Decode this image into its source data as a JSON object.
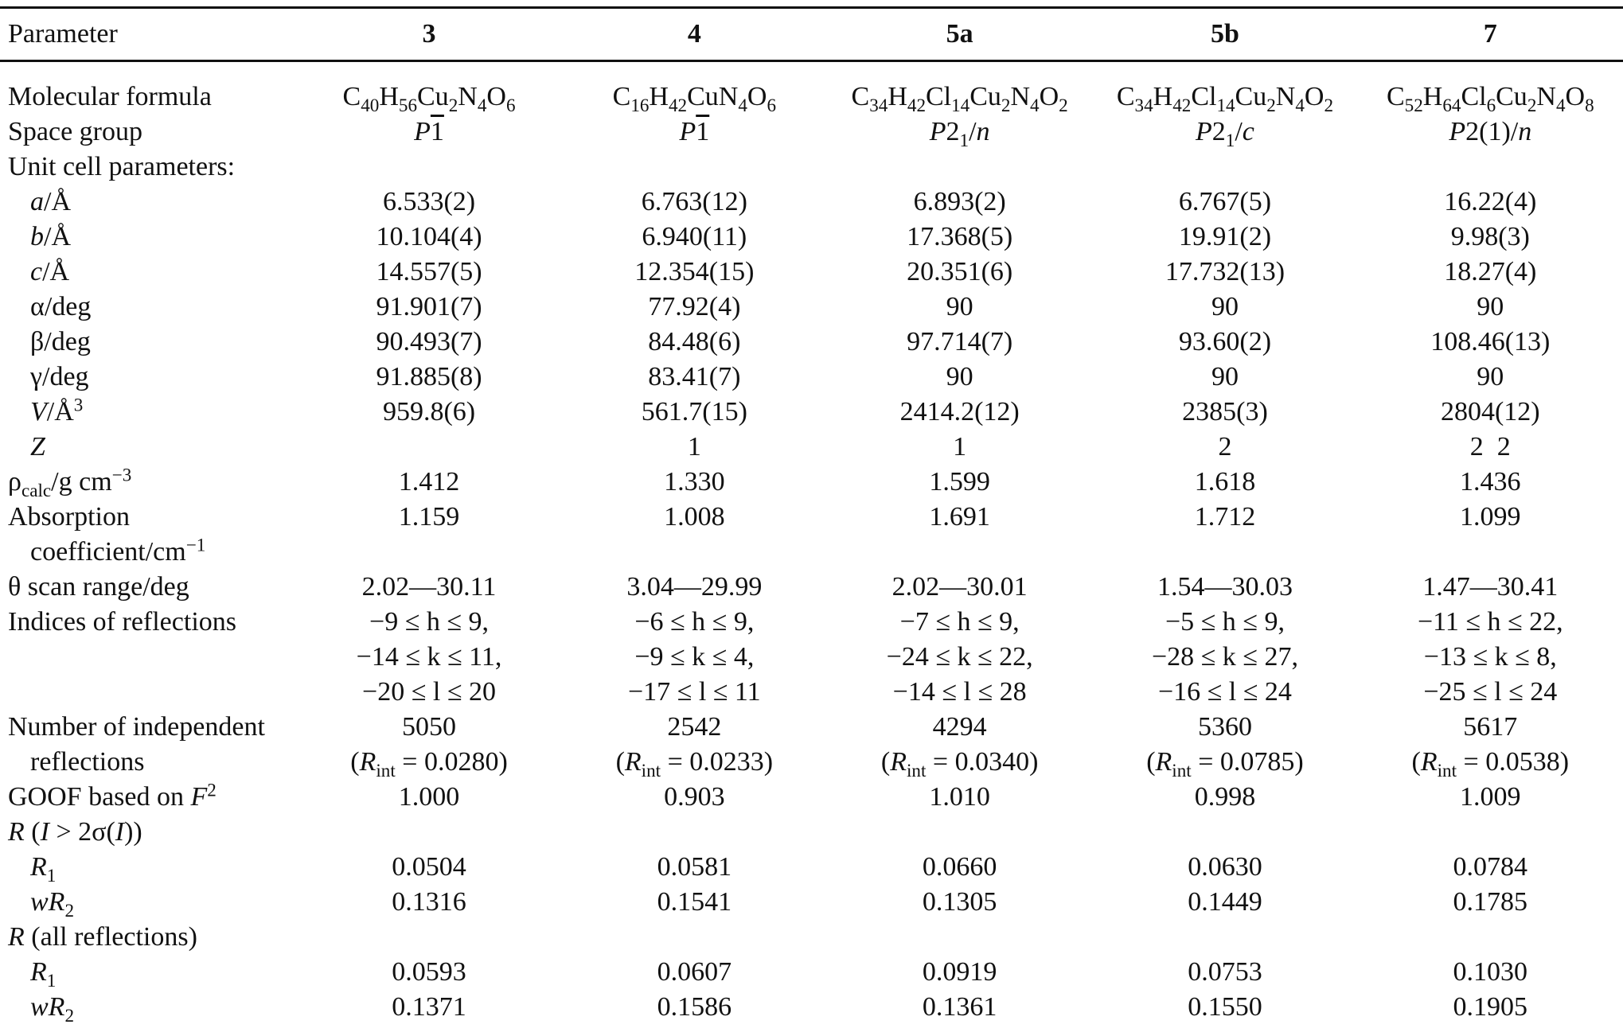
{
  "table": {
    "header": {
      "parameter": "Parameter",
      "compounds": [
        "3",
        "4",
        "5a",
        "5b",
        "7"
      ]
    },
    "rows": {
      "formula": {
        "label": "Molecular formula",
        "values": [
          "C40H56Cu2N4O6",
          "C16H42CuN4O6",
          "C34H42Cl14Cu2N4O2",
          "C34H42Cl14Cu2N4O2",
          "C52H64Cl6Cu2N4O8"
        ]
      },
      "space_group": {
        "label": "Space group",
        "values": [
          "P-1",
          "P-1",
          "P21/n",
          "P21/c",
          "P2(1)/n"
        ]
      },
      "unit_cell": {
        "label": "Unit cell parameters:"
      },
      "a": {
        "label": "a/Å",
        "values": [
          "6.533(2)",
          "6.763(12)",
          "6.893(2)",
          "6.767(5)",
          "16.22(4)"
        ]
      },
      "b": {
        "label": "b/Å",
        "values": [
          "10.104(4)",
          "6.940(11)",
          "17.368(5)",
          "19.91(2)",
          "9.98(3)"
        ]
      },
      "c": {
        "label": "c/Å",
        "values": [
          "14.557(5)",
          "12.354(15)",
          "20.351(6)",
          "17.732(13)",
          "18.27(4)"
        ]
      },
      "alpha": {
        "label": "α/deg",
        "values": [
          "91.901(7)",
          "77.92(4)",
          "90",
          "90",
          "90"
        ]
      },
      "beta": {
        "label": "β/deg",
        "values": [
          "90.493(7)",
          "84.48(6)",
          "97.714(7)",
          "93.60(2)",
          "108.46(13)"
        ]
      },
      "gamma": {
        "label": "γ/deg",
        "values": [
          "91.885(8)",
          "83.41(7)",
          "90",
          "90",
          "90"
        ]
      },
      "V": {
        "label": "V/Å3",
        "values": [
          "959.8(6)",
          "561.7(15)",
          "2414.2(12)",
          "2385(3)",
          "2804(12)"
        ]
      },
      "Z": {
        "label": "Z",
        "values": [
          "",
          "1",
          "1",
          "2",
          "2  2"
        ]
      },
      "rho": {
        "label": "ρcalc/g cm−3",
        "values": [
          "1.412",
          "1.330",
          "1.599",
          "1.618",
          "1.436"
        ]
      },
      "absorption": {
        "label": "Absorption",
        "label2": "coefficient/cm−1",
        "values": [
          "1.159",
          "1.008",
          "1.691",
          "1.712",
          "1.099"
        ]
      },
      "theta": {
        "label": "θ scan range/deg",
        "values": [
          "2.02—30.11",
          "3.04—29.99",
          "2.02—30.01",
          "1.54—30.03",
          "1.47—30.41"
        ]
      },
      "indices": {
        "label": "Indices of reflections",
        "h": [
          "−9 ≤ h ≤ 9,",
          "−6 ≤ h ≤ 9,",
          "−7 ≤ h ≤ 9,",
          "−5 ≤ h ≤ 9,",
          "−11 ≤ h ≤ 22,"
        ],
        "k": [
          "−14 ≤ k ≤ 11,",
          "−9 ≤ k ≤ 4,",
          "−24 ≤ k ≤ 22,",
          "−28 ≤ k ≤ 27,",
          "−13 ≤ k ≤ 8,"
        ],
        "l": [
          "−20 ≤ l ≤ 20",
          "−17 ≤ l ≤ 11",
          "−14 ≤ l ≤ 28",
          "−16 ≤ l ≤ 24",
          "−25 ≤ l ≤ 24"
        ]
      },
      "independent": {
        "label": "Number of independent",
        "label2": "reflections",
        "values": [
          "5050",
          "2542",
          "4294",
          "5360",
          "5617"
        ],
        "rint": [
          "0.0280",
          "0.0233",
          "0.0340",
          "0.0785",
          "0.0538"
        ]
      },
      "goof": {
        "label": "GOOF based on F2",
        "values": [
          "1.000",
          "0.903",
          "1.010",
          "0.998",
          "1.009"
        ]
      },
      "r_obs": {
        "label": "R (I > 2σ(I))"
      },
      "r1_obs": {
        "label": "R1",
        "values": [
          "0.0504",
          "0.0581",
          "0.0660",
          "0.0630",
          "0.0784"
        ]
      },
      "wr2_obs": {
        "label": "wR2",
        "values": [
          "0.1316",
          "0.1541",
          "0.1305",
          "0.1449",
          "0.1785"
        ]
      },
      "r_all": {
        "label": "R (all reflections)"
      },
      "r1_all": {
        "label": "R1",
        "values": [
          "0.0593",
          "0.0607",
          "0.0919",
          "0.0753",
          "0.1030"
        ]
      },
      "wr2_all": {
        "label": "wR2",
        "values": [
          "0.1371",
          "0.1586",
          "0.1361",
          "0.1550",
          "0.1905"
        ]
      }
    }
  }
}
